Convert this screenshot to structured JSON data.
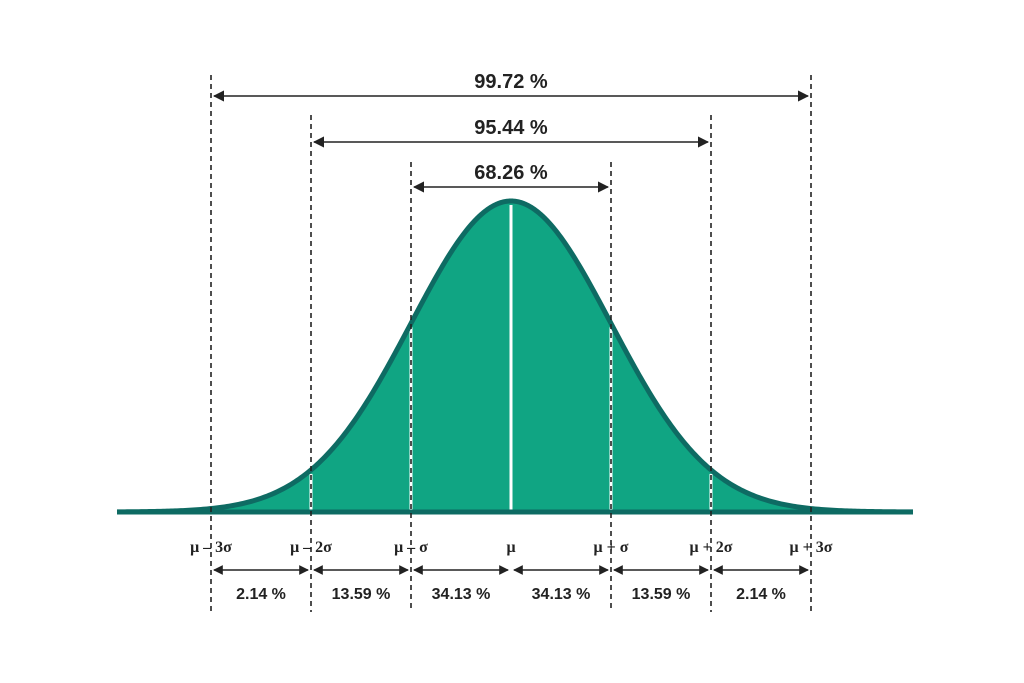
{
  "chart_data": {
    "type": "area",
    "title": "",
    "xlabel": "",
    "ylabel": "",
    "xlim": [
      -4,
      4
    ],
    "curve": "normal density",
    "tick_labels": [
      "μ – 3σ",
      "μ – 2σ",
      "μ – σ",
      "μ",
      "μ + σ",
      "μ + 2σ",
      "μ + 3σ"
    ],
    "tick_sigmas": [
      -3,
      -2,
      -1,
      0,
      1,
      2,
      3
    ],
    "intervals": [
      {
        "label": "99.72 %",
        "from": -3,
        "to": 3,
        "value": 99.72
      },
      {
        "label": "95.44 %",
        "from": -2,
        "to": 2,
        "value": 95.44
      },
      {
        "label": "68.26 %",
        "from": -1,
        "to": 1,
        "value": 68.26
      }
    ],
    "segments": [
      {
        "label": "2.14 %",
        "from": -3,
        "to": -2,
        "value": 2.14
      },
      {
        "label": "13.59 %",
        "from": -2,
        "to": -1,
        "value": 13.59
      },
      {
        "label": "34.13 %",
        "from": -1,
        "to": 0,
        "value": 34.13
      },
      {
        "label": "34.13 %",
        "from": 0,
        "to": 1,
        "value": 34.13
      },
      {
        "label": "13.59 %",
        "from": 1,
        "to": 2,
        "value": 13.59
      },
      {
        "label": "2.14 %",
        "from": 2,
        "to": 3,
        "value": 2.14
      }
    ],
    "colors": {
      "fill": "#10a583",
      "stroke": "#0e6b63",
      "dividers": "#ffffff",
      "text": "#222222",
      "lines": "#222222"
    },
    "grid": false,
    "legend": "none"
  }
}
